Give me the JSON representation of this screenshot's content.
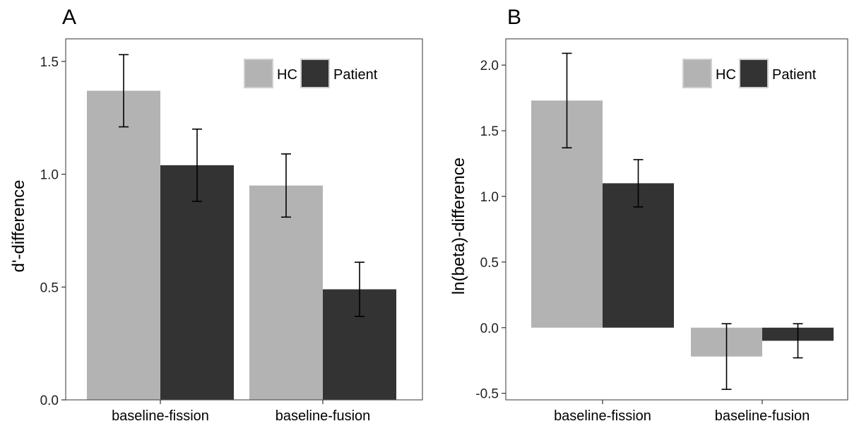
{
  "colors": {
    "HC": "#b3b3b3",
    "Patient": "#333333",
    "errorbar": "#000000",
    "frame": "#555555"
  },
  "chart_data": [
    {
      "type": "bar",
      "panel": "A",
      "title": "",
      "xlabel": "",
      "ylabel": "d'-difference",
      "categories": [
        "baseline-fission",
        "baseline-fusion"
      ],
      "series": [
        {
          "name": "HC",
          "values": [
            1.37,
            0.95
          ],
          "error": [
            0.16,
            0.14
          ]
        },
        {
          "name": "Patient",
          "values": [
            1.04,
            0.49
          ],
          "error": [
            0.16,
            0.12
          ]
        }
      ],
      "ylim": [
        0,
        1.6
      ],
      "yticks": [
        0.0,
        0.5,
        1.0,
        1.5
      ],
      "ytick_labels": [
        "0.0",
        "0.5",
        "1.0",
        "1.5"
      ],
      "legend": [
        "HC",
        "Patient"
      ],
      "legend_position": "top-right",
      "grid": false
    },
    {
      "type": "bar",
      "panel": "B",
      "title": "",
      "xlabel": "",
      "ylabel": "ln(beta)-difference",
      "categories": [
        "baseline-fission",
        "baseline-fusion"
      ],
      "series": [
        {
          "name": "HC",
          "values": [
            1.73,
            -0.22
          ],
          "error": [
            0.36,
            0.25
          ]
        },
        {
          "name": "Patient",
          "values": [
            1.1,
            -0.1
          ],
          "error": [
            0.18,
            0.13
          ]
        }
      ],
      "ylim": [
        -0.55,
        2.2
      ],
      "yticks": [
        -0.5,
        0.0,
        0.5,
        1.0,
        1.5,
        2.0
      ],
      "ytick_labels": [
        "-0.5",
        "0.0",
        "0.5",
        "1.0",
        "1.5",
        "2.0"
      ],
      "legend": [
        "HC",
        "Patient"
      ],
      "legend_position": "top-right",
      "grid": false
    }
  ]
}
